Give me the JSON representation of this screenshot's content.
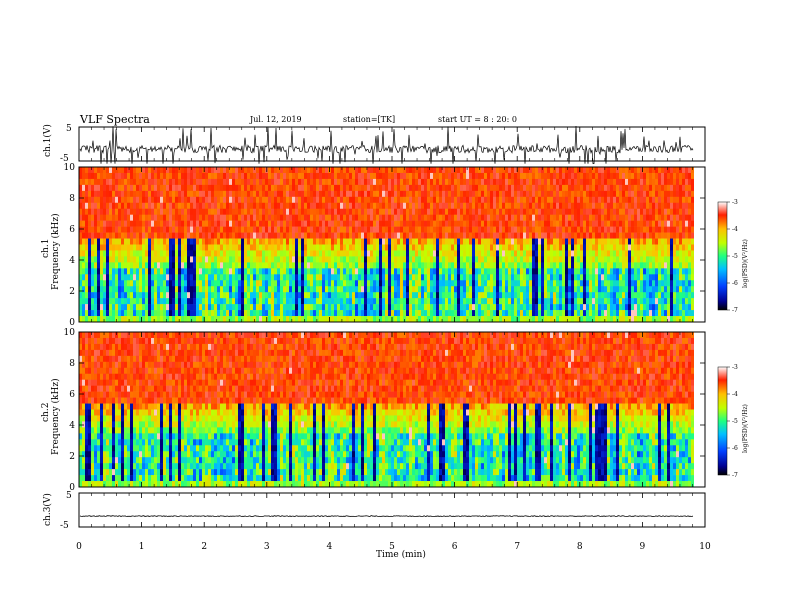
{
  "header": {
    "title": "VLF Spectra",
    "date": "Jul. 12, 2019",
    "station": "station=[TK]",
    "start": "start UT = 8 : 20: 0"
  },
  "chart_data": [
    {
      "type": "line",
      "ylabel": "ch.1(V)",
      "ylim": [
        -5,
        5
      ],
      "yticks": [
        "5",
        "-5"
      ],
      "xlim": [
        0,
        10
      ],
      "description_values": {
        "baseline": -1.5,
        "range": [
          -5,
          5
        ]
      }
    },
    {
      "type": "heatmap",
      "ylabel": "Frequency (kHz)",
      "channel": "ch.1",
      "ylim": [
        0,
        10
      ],
      "yticks": [
        "0",
        "2",
        "4",
        "6",
        "8",
        "10"
      ],
      "xlim": [
        0,
        10
      ],
      "data_end_min": 9.82,
      "colorbar": {
        "label": "log(PSD)(V²/Hz)",
        "range": [
          -7,
          -3
        ],
        "ticks": [
          "-3",
          "-4",
          "-5",
          "-6",
          "-7"
        ]
      }
    },
    {
      "type": "heatmap",
      "ylabel": "Frequency (kHz)",
      "channel": "ch.2",
      "ylim": [
        0,
        10
      ],
      "yticks": [
        "0",
        "2",
        "4",
        "6",
        "8",
        "10"
      ],
      "xlim": [
        0,
        10
      ],
      "data_end_min": 9.82,
      "colorbar": {
        "label": "log(PSD)(V²/Hz)",
        "range": [
          -7,
          -3
        ],
        "ticks": [
          "-3",
          "-4",
          "-5",
          "-6",
          "-7"
        ]
      }
    },
    {
      "type": "line",
      "ylabel": "ch.3(V)",
      "ylim": [
        -5,
        5
      ],
      "yticks": [
        "5",
        "-5"
      ],
      "xlim": [
        0,
        10
      ],
      "description_values": {
        "baseline": -1.8
      }
    }
  ],
  "xaxis": {
    "label": "Time (min)",
    "ticks": [
      "0",
      "1",
      "2",
      "3",
      "4",
      "5",
      "6",
      "7",
      "8",
      "9",
      "10"
    ]
  },
  "colors": {
    "line": "#000000"
  }
}
